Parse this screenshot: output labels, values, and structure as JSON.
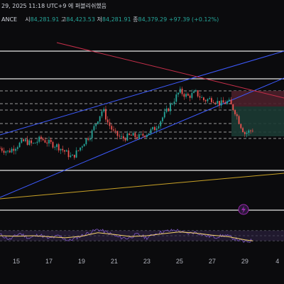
{
  "header": {
    "datetime": "29, 2025 11:18 UTC+9 에 퍼블리쉬했음",
    "symbol_fragment": "ANCE",
    "open_label": "시",
    "open_value": "84,281.91",
    "high_label": "고",
    "high_value": "84,423.53",
    "low_label": "저",
    "low_value": "84,281.91",
    "close_label": "종",
    "close_value": "84,379.29",
    "change_value": "+97.39 (+0.12%)"
  },
  "chart_data": [
    {
      "type": "line",
      "name": "price",
      "x_tick_labels": [
        "15",
        "17",
        "19",
        "21",
        "23",
        "25",
        "27",
        "29",
        "4"
      ],
      "x_tick_days": [
        15,
        17,
        19,
        21,
        23,
        25,
        27,
        29,
        31
      ],
      "x_range": [
        14.0,
        31.4
      ],
      "price_axis": "hidden",
      "series": [
        {
          "values": [
            {
              "day": 14.0,
              "value": 0.35
            },
            {
              "day": 14.5,
              "value": 0.3
            },
            {
              "day": 15.0,
              "value": 0.38
            },
            {
              "day": 15.5,
              "value": 0.45
            },
            {
              "day": 16.0,
              "value": 0.4
            },
            {
              "day": 16.5,
              "value": 0.48
            },
            {
              "day": 17.0,
              "value": 0.42
            },
            {
              "day": 17.5,
              "value": 0.38
            },
            {
              "day": 18.0,
              "value": 0.3
            },
            {
              "day": 18.4,
              "value": 0.22
            },
            {
              "day": 18.8,
              "value": 0.32
            },
            {
              "day": 19.2,
              "value": 0.45
            },
            {
              "day": 19.6,
              "value": 0.55
            },
            {
              "day": 20.0,
              "value": 0.75
            },
            {
              "day": 20.3,
              "value": 0.88
            },
            {
              "day": 20.6,
              "value": 0.7
            },
            {
              "day": 21.0,
              "value": 0.55
            },
            {
              "day": 21.5,
              "value": 0.48
            },
            {
              "day": 22.0,
              "value": 0.52
            },
            {
              "day": 22.5,
              "value": 0.5
            },
            {
              "day": 23.0,
              "value": 0.55
            },
            {
              "day": 23.5,
              "value": 0.62
            },
            {
              "day": 24.0,
              "value": 0.78
            },
            {
              "day": 24.5,
              "value": 0.95
            },
            {
              "day": 25.0,
              "value": 1.12
            },
            {
              "day": 25.5,
              "value": 1.05
            },
            {
              "day": 26.0,
              "value": 1.1
            },
            {
              "day": 26.5,
              "value": 1.0
            },
            {
              "day": 27.0,
              "value": 1.02
            },
            {
              "day": 27.5,
              "value": 0.95
            },
            {
              "day": 28.0,
              "value": 0.98
            },
            {
              "day": 28.4,
              "value": 0.85
            },
            {
              "day": 28.7,
              "value": 0.68
            },
            {
              "day": 29.0,
              "value": 0.55
            },
            {
              "day": 29.3,
              "value": 0.58
            },
            {
              "day": 29.6,
              "value": 0.62
            }
          ]
        }
      ]
    },
    {
      "type": "line",
      "name": "oscillator",
      "price_axis": "hidden",
      "series": [
        {
          "values": [
            {
              "day": 14.0,
              "value": 55
            },
            {
              "day": 14.6,
              "value": 35
            },
            {
              "day": 15.2,
              "value": 60
            },
            {
              "day": 15.8,
              "value": 40
            },
            {
              "day": 16.4,
              "value": 55
            },
            {
              "day": 17.0,
              "value": 38
            },
            {
              "day": 17.6,
              "value": 50
            },
            {
              "day": 18.2,
              "value": 30
            },
            {
              "day": 18.8,
              "value": 45
            },
            {
              "day": 19.4,
              "value": 60
            },
            {
              "day": 20.0,
              "value": 75
            },
            {
              "day": 20.6,
              "value": 62
            },
            {
              "day": 21.2,
              "value": 45
            },
            {
              "day": 21.8,
              "value": 40
            },
            {
              "day": 22.4,
              "value": 55
            },
            {
              "day": 23.0,
              "value": 42
            },
            {
              "day": 23.6,
              "value": 60
            },
            {
              "day": 24.2,
              "value": 68
            },
            {
              "day": 24.8,
              "value": 72
            },
            {
              "day": 25.4,
              "value": 58
            },
            {
              "day": 26.0,
              "value": 64
            },
            {
              "day": 26.6,
              "value": 50
            },
            {
              "day": 27.2,
              "value": 45
            },
            {
              "day": 27.8,
              "value": 52
            },
            {
              "day": 28.4,
              "value": 38
            },
            {
              "day": 29.0,
              "value": 25
            },
            {
              "day": 29.5,
              "value": 32
            }
          ]
        },
        {
          "values": [
            {
              "day": 14.0,
              "value": 50
            },
            {
              "day": 15.0,
              "value": 48
            },
            {
              "day": 16.0,
              "value": 50
            },
            {
              "day": 17.0,
              "value": 46
            },
            {
              "day": 18.0,
              "value": 42
            },
            {
              "day": 19.0,
              "value": 48
            },
            {
              "day": 20.0,
              "value": 62
            },
            {
              "day": 21.0,
              "value": 55
            },
            {
              "day": 22.0,
              "value": 47
            },
            {
              "day": 23.0,
              "value": 50
            },
            {
              "day": 24.0,
              "value": 58
            },
            {
              "day": 25.0,
              "value": 65
            },
            {
              "day": 26.0,
              "value": 60
            },
            {
              "day": 27.0,
              "value": 52
            },
            {
              "day": 28.0,
              "value": 46
            },
            {
              "day": 29.0,
              "value": 34
            },
            {
              "day": 29.5,
              "value": 30
            }
          ]
        }
      ]
    }
  ],
  "colors": {
    "background": "#0b0b0d",
    "grid": "#2a2e39",
    "up_candle": "#26a69a",
    "down_candle": "#ef5350",
    "channel_line": "#3d5afe",
    "resistance_line": "#c62f4a",
    "support_line": "#c9a227",
    "oscillator_main": "#7e57c2",
    "oscillator_signal": "#f5d36b",
    "oscillator_band": "#2a1f3d",
    "zone_red": "#4a1f2a",
    "zone_green": "#1b3a33",
    "marker_purple": "#9c27b0"
  },
  "icons": {
    "marker": "lightning-icon"
  }
}
